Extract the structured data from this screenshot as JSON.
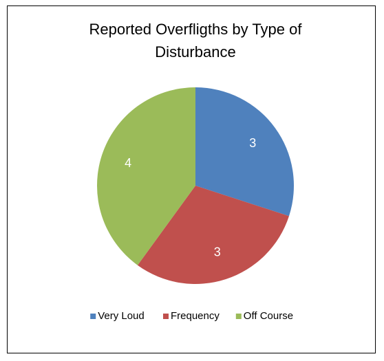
{
  "chart_data": {
    "type": "pie",
    "title": "Reported Overfligths by Type of Disturbance",
    "categories": [
      "Very Loud",
      "Frequency",
      "Off Course"
    ],
    "values": [
      3,
      3,
      4
    ],
    "colors": [
      "#4f81bd",
      "#c0504d",
      "#9bbb59"
    ],
    "legend": "bottom"
  }
}
